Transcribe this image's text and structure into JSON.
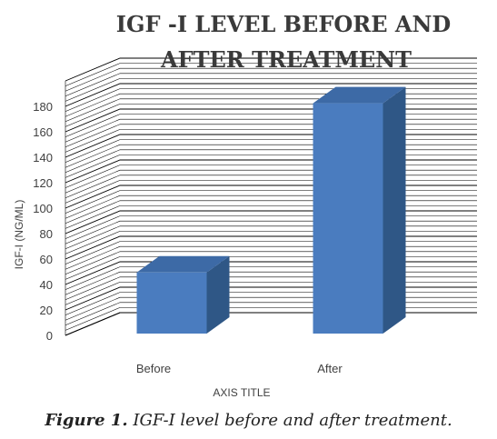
{
  "caption": {
    "label": "Figure 1.",
    "text": " IGF-I level before and after treatment."
  },
  "chart_data": {
    "type": "bar",
    "title_lines": [
      "IGF  -I LEVEL BEFORE AND",
      "AFTER TREATMENT"
    ],
    "categories": [
      "Before",
      "After"
    ],
    "values": [
      48,
      181
    ],
    "ylabel": "IGF-I (NG/ML)",
    "xlabel": "AXIS TITLE",
    "ylim": [
      0,
      180
    ],
    "yticks": [
      0,
      20,
      40,
      60,
      80,
      100,
      120,
      140,
      160,
      180
    ],
    "grid": true,
    "legend": "none",
    "colors": {
      "bar_front": "#4a7cbf",
      "bar_side": "#2f5786",
      "bar_top": "#3d6aa6",
      "grid": "#000000",
      "text": "#404040"
    }
  }
}
